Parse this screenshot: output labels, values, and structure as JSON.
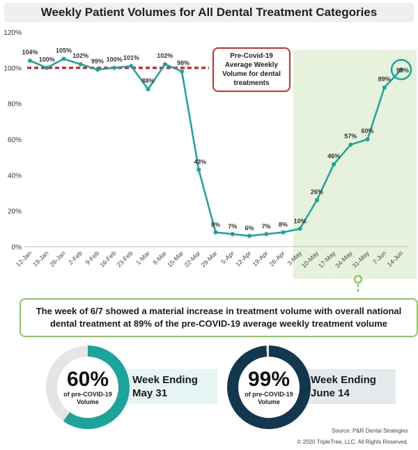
{
  "title": "Weekly Patient Volumes for All Dental Treatment Categories",
  "chart_data": {
    "type": "line",
    "categories": [
      "12-Jan",
      "19-Jan",
      "26-Jan",
      "2-Feb",
      "9-Feb",
      "16-Feb",
      "23-Feb",
      "1-Mar",
      "8-Mar",
      "15-Mar",
      "22-Mar",
      "29-Mar",
      "5-Apr",
      "12-Apr",
      "19-Apr",
      "26-Apr",
      "3-May",
      "10-May",
      "17-May",
      "24-May",
      "31-May",
      "7-Jun",
      "14-Jun"
    ],
    "values": [
      104,
      100,
      105,
      102,
      99,
      100,
      101,
      88,
      102,
      98,
      43,
      8,
      7,
      6,
      7,
      8,
      10,
      26,
      46,
      57,
      60,
      89,
      99
    ],
    "value_labels": [
      "104%",
      "100%",
      "105%",
      "102%",
      "99%",
      "100%",
      "101%",
      "88%",
      "102%",
      "98%",
      "43%",
      "8%",
      "7%",
      "6%",
      "7%",
      "8%",
      "10%",
      "26%",
      "46%",
      "57%",
      "60%",
      "89%",
      "99%"
    ],
    "ylim": [
      0,
      120
    ],
    "yticks": [
      0,
      20,
      40,
      60,
      80,
      100,
      120
    ],
    "ytick_labels": [
      "0%",
      "20%",
      "40%",
      "60%",
      "80%",
      "100%",
      "120%"
    ],
    "reference_line": 100,
    "highlight_from_category": "3-May",
    "colors": {
      "line": "#1ba39c",
      "reference": "#e02b2b",
      "highlight": "#e6f2dc",
      "circle": "#1ba39c"
    },
    "grid": false
  },
  "reference_note": [
    "Pre-Covid-19",
    "Average Weekly",
    "Volume for dental",
    "treatments"
  ],
  "summary": [
    "The week of 6/7 showed a material increase in treatment volume with overall national",
    "dental treatment at 89% of the pre-COVID-19 average weekly treatment volume"
  ],
  "kpis": [
    {
      "pct_label": "60%",
      "pct_value": 60,
      "sub1": "of pre-COVID-19",
      "sub2": "Volume",
      "week1": "Week Ending",
      "week2": "May 31",
      "ring_color": "#1ba39c",
      "track_color": "#e5e5e5",
      "box_color": "#e6f4f4"
    },
    {
      "pct_label": "99%",
      "pct_value": 99,
      "sub1": "of pre-COVID-19",
      "sub2": "Volume",
      "week1": "Week Ending",
      "week2": "June 14",
      "ring_color": "#12374f",
      "track_color": "#e5e5e5",
      "box_color": "#e6e9ec"
    }
  ],
  "footer": {
    "source": "Source: P&R Dental Strategies",
    "copyright": "© 2020 TripleTree, LLC. All Rights Reserved."
  }
}
